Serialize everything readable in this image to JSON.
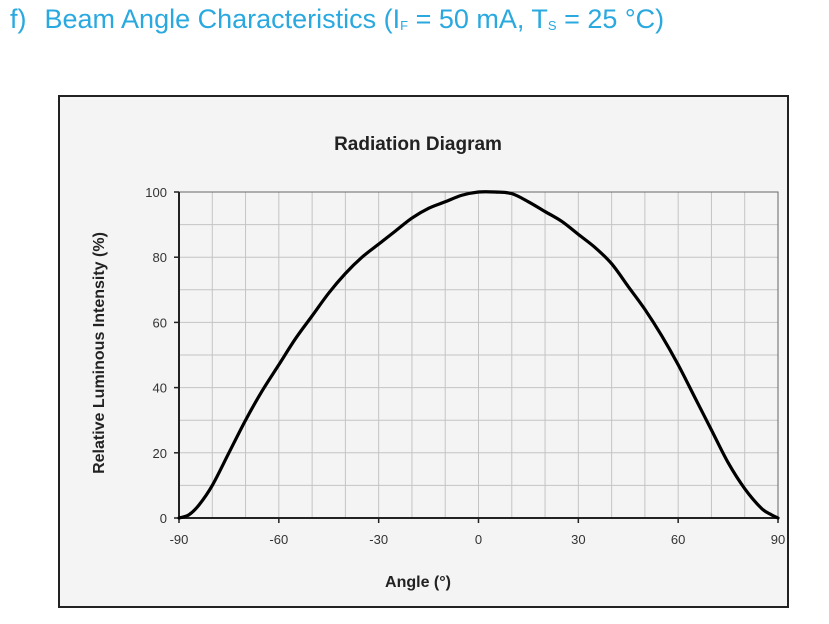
{
  "heading": {
    "marker": "f)",
    "prefix": "Beam Angle Characteristics (I",
    "sub1": "F",
    "mid": " = 50 mA, T",
    "sub2": "S",
    "suffix": " = 25 °C)"
  },
  "colors": {
    "heading": "#29a9df",
    "curve": "#000000",
    "grid": "#c4c4c4",
    "frame": "#222222",
    "background": "#f4f4f4"
  },
  "chart_data": {
    "type": "line",
    "title": "Radiation Diagram",
    "xlabel": "Angle (°)",
    "ylabel": "Relative Luminous Intensity (%)",
    "xlim": [
      -90,
      90
    ],
    "ylim": [
      0,
      100
    ],
    "x_ticks": [
      -90,
      -60,
      -30,
      0,
      30,
      60,
      90
    ],
    "y_ticks": [
      0,
      20,
      40,
      60,
      80,
      100
    ],
    "grid": true,
    "legend": "none",
    "series": [
      {
        "x": [
          -90,
          -87,
          -84,
          -80,
          -75,
          -70,
          -65,
          -60,
          -55,
          -50,
          -45,
          -40,
          -35,
          -30,
          -25,
          -20,
          -15,
          -10,
          -5,
          0,
          5,
          10,
          15,
          20,
          25,
          30,
          35,
          40,
          45,
          50,
          55,
          60,
          65,
          70,
          75,
          80,
          85,
          88,
          90
        ],
        "y": [
          0,
          1,
          4,
          10,
          20,
          30,
          39,
          47,
          55,
          62,
          69,
          75,
          80,
          84,
          88,
          92,
          95,
          97,
          99,
          100,
          100,
          99.5,
          97,
          94,
          91,
          87,
          83,
          78,
          71,
          64,
          56,
          47,
          37,
          27,
          17,
          9,
          3,
          1,
          0
        ]
      }
    ]
  }
}
